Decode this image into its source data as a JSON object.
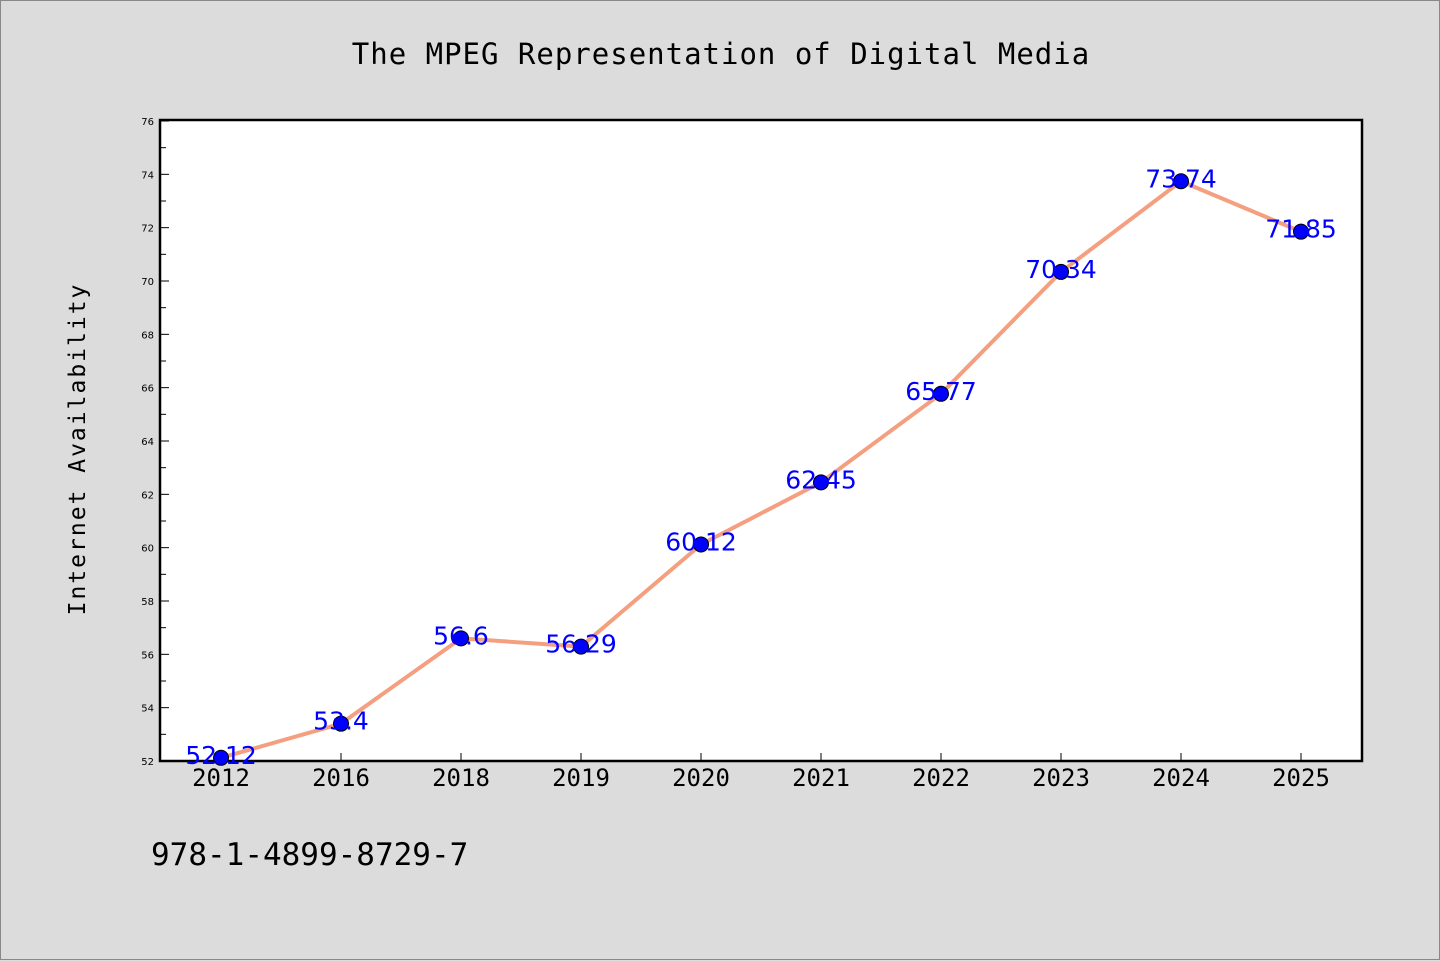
{
  "chart_data": {
    "type": "line",
    "title": "The MPEG Representation of Digital Media",
    "xlabel": "",
    "ylabel": "Internet Availability",
    "categories": [
      "2012",
      "2016",
      "2018",
      "2019",
      "2020",
      "2021",
      "2022",
      "2023",
      "2024",
      "2025"
    ],
    "values": [
      52.12,
      53.4,
      56.6,
      56.29,
      60.12,
      62.45,
      65.77,
      70.34,
      73.74,
      71.85
    ],
    "data_labels": [
      "52.12",
      "53.4",
      "56.6",
      "56.29",
      "60.12",
      "62.45",
      "65.77",
      "70.34",
      "73.74",
      "71.85"
    ],
    "ylim": [
      52,
      76
    ],
    "yticks": [
      "52",
      "54",
      "56",
      "58",
      "60",
      "62",
      "64",
      "66",
      "68",
      "70",
      "72",
      "74",
      "76"
    ],
    "grid": false,
    "legend": "none",
    "line_color": "#f4a080",
    "marker_color": "#0000ff",
    "label_color": "#0000ff"
  },
  "footer_text": "978-1-4899-8729-7"
}
